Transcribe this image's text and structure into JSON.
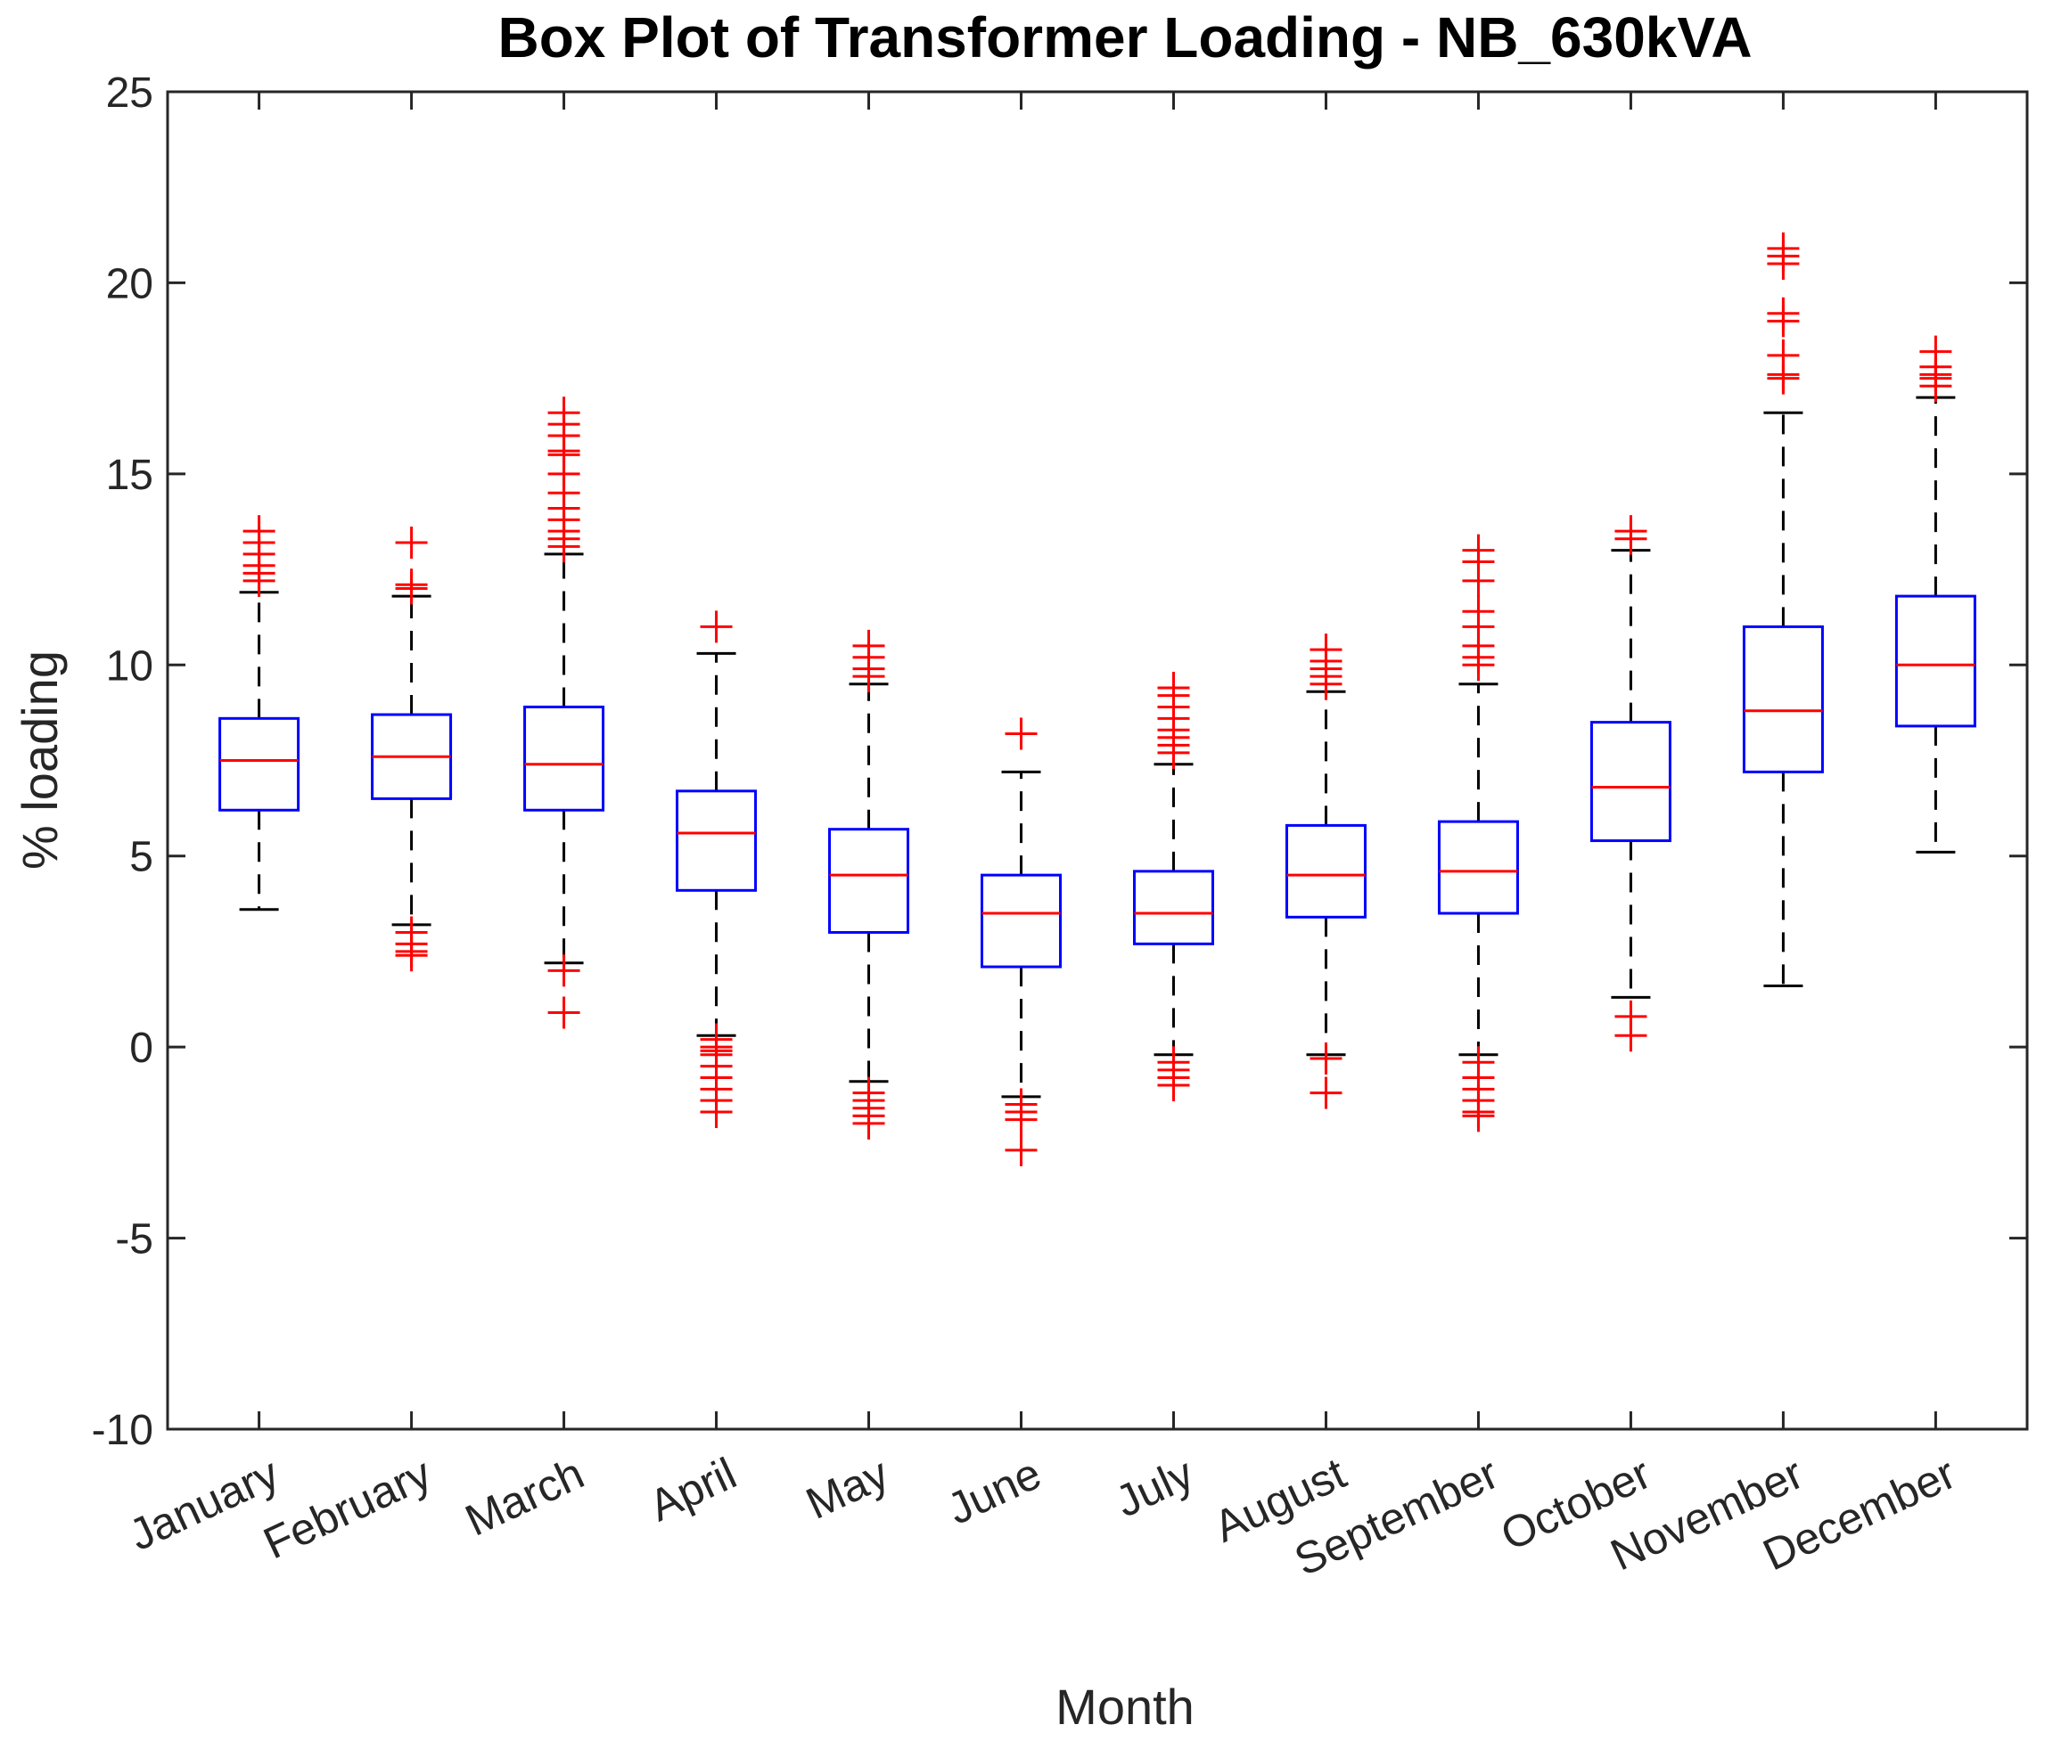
{
  "chart_data": {
    "type": "box",
    "title": "Box Plot of Transformer Loading - NB_630kVA",
    "xlabel": "Month",
    "ylabel": "% loading",
    "ylim": [
      -10,
      25
    ],
    "yticks": [
      "25",
      "20",
      "15",
      "10",
      "5",
      "0",
      "-5",
      "-10"
    ],
    "ytick_values": [
      25,
      20,
      15,
      10,
      5,
      0,
      -5,
      -10
    ],
    "grid": false,
    "colors": {
      "box": "#0000ff",
      "median": "#ff0000",
      "outlier": "#ff0000",
      "whisker": "#000000",
      "axis": "#262626"
    },
    "categories": [
      "January",
      "February",
      "March",
      "April",
      "May",
      "June",
      "July",
      "August",
      "September",
      "October",
      "November",
      "December"
    ],
    "boxes": [
      {
        "q1": 6.2,
        "median": 7.5,
        "q3": 8.6,
        "whisker_low": 3.6,
        "whisker_high": 11.9,
        "outliers": [
          12.2,
          12.4,
          12.6,
          12.9,
          13.2,
          13.5
        ]
      },
      {
        "q1": 6.5,
        "median": 7.6,
        "q3": 8.7,
        "whisker_low": 3.2,
        "whisker_high": 11.8,
        "outliers": [
          12.0,
          12.1,
          13.2,
          3.0,
          2.7,
          2.5,
          2.4
        ]
      },
      {
        "q1": 6.2,
        "median": 7.4,
        "q3": 8.9,
        "whisker_low": 2.2,
        "whisker_high": 12.9,
        "outliers": [
          13.1,
          13.3,
          13.5,
          13.8,
          14.1,
          14.5,
          15.0,
          15.5,
          15.6,
          16.0,
          16.3,
          16.6,
          2.0,
          0.9
        ]
      },
      {
        "q1": 4.1,
        "median": 5.6,
        "q3": 6.7,
        "whisker_low": 0.3,
        "whisker_high": 10.3,
        "outliers": [
          11.0,
          0.2,
          0.0,
          -0.1,
          -0.2,
          -0.5,
          -0.8,
          -1.1,
          -1.4,
          -1.7
        ]
      },
      {
        "q1": 3.0,
        "median": 4.5,
        "q3": 5.7,
        "whisker_low": -0.9,
        "whisker_high": 9.5,
        "outliers": [
          9.7,
          9.9,
          10.2,
          10.5,
          -1.2,
          -1.4,
          -1.6,
          -1.8,
          -2.0
        ]
      },
      {
        "q1": 2.1,
        "median": 3.5,
        "q3": 4.5,
        "whisker_low": -1.3,
        "whisker_high": 7.2,
        "outliers": [
          8.2,
          -1.5,
          -1.7,
          -1.9,
          -2.7
        ]
      },
      {
        "q1": 2.7,
        "median": 3.5,
        "q3": 4.6,
        "whisker_low": -0.2,
        "whisker_high": 7.4,
        "outliers": [
          7.7,
          7.9,
          8.1,
          8.3,
          8.6,
          8.9,
          9.2,
          9.4,
          -0.4,
          -0.6,
          -0.8,
          -1.0
        ]
      },
      {
        "q1": 3.4,
        "median": 4.5,
        "q3": 5.8,
        "whisker_low": -0.2,
        "whisker_high": 9.3,
        "outliers": [
          9.5,
          9.7,
          9.9,
          10.1,
          10.4,
          -0.3,
          -1.2
        ]
      },
      {
        "q1": 3.5,
        "median": 4.6,
        "q3": 5.9,
        "whisker_low": -0.2,
        "whisker_high": 9.5,
        "outliers": [
          10.0,
          10.2,
          10.5,
          11.0,
          11.4,
          12.2,
          12.7,
          13.0,
          -0.4,
          -0.8,
          -1.1,
          -1.4,
          -1.7,
          -1.8
        ]
      },
      {
        "q1": 5.4,
        "median": 6.8,
        "q3": 8.5,
        "whisker_low": 1.3,
        "whisker_high": 13.0,
        "outliers": [
          13.3,
          13.5,
          0.8,
          0.3
        ]
      },
      {
        "q1": 7.2,
        "median": 8.8,
        "q3": 11.0,
        "whisker_low": 1.6,
        "whisker_high": 16.6,
        "outliers": [
          17.5,
          17.6,
          18.1,
          19.0,
          19.2,
          20.5,
          20.7,
          20.9
        ]
      },
      {
        "q1": 8.4,
        "median": 10.0,
        "q3": 11.8,
        "whisker_low": 5.1,
        "whisker_high": 17.0,
        "outliers": [
          17.3,
          17.5,
          17.6,
          17.8,
          18.2
        ]
      }
    ]
  }
}
